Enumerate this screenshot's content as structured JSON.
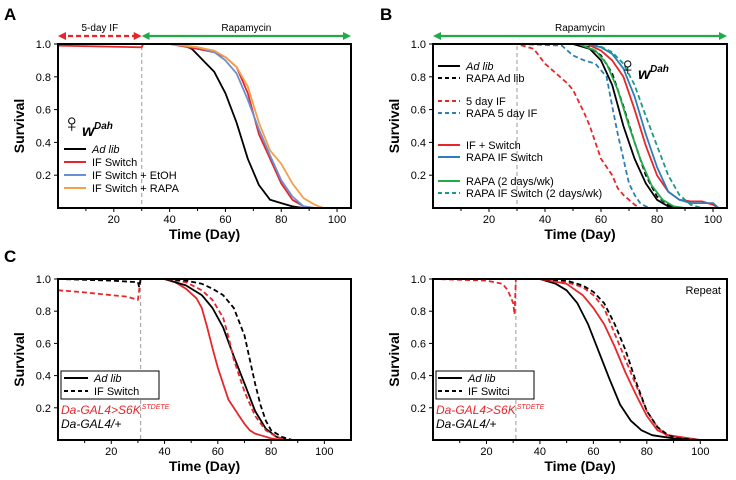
{
  "colors": {
    "black": "#000000",
    "red": "#e8262a",
    "blue": "#6a8fd3",
    "orange": "#f2a04a",
    "steel": "#2c7fb8",
    "green": "#21a94a",
    "teal": "#1a9a8a",
    "gray": "#aaaaaa",
    "arrow_red": "#e8262a",
    "arrow_green": "#21a94a"
  },
  "chart_data": [
    {
      "panel": "A",
      "type": "line",
      "xlabel": "Time (Day)",
      "ylabel": "Survival",
      "xlim": [
        0,
        105
      ],
      "ylim": [
        0,
        1
      ],
      "xticks": [
        20,
        40,
        60,
        80,
        100
      ],
      "yticks": [
        0.2,
        0.4,
        0.6,
        0.8,
        1.0
      ],
      "vline_x": 30,
      "top_arrows": [
        {
          "label": "5-day IF",
          "from": 0,
          "to": 30,
          "color": "arrow_red",
          "style": "dashed"
        },
        {
          "label": "Rapamycin",
          "from": 30,
          "to": 105,
          "color": "arrow_green",
          "style": "solid"
        }
      ],
      "female_label": {
        "symbol": "♀",
        "prefix": "w",
        "superscript": "Dah"
      },
      "legend": [
        {
          "label": "Ad lib",
          "color": "black",
          "dash": false,
          "italic": true
        },
        {
          "label": "IF Switch",
          "color": "red",
          "dash": false,
          "italic": false
        },
        {
          "label": "IF Switch + EtOH",
          "color": "blue",
          "dash": false,
          "italic": false
        },
        {
          "label": "IF Switch + RAPA",
          "color": "orange",
          "dash": false,
          "italic": false
        }
      ],
      "series": [
        {
          "name": "Ad lib",
          "color": "black",
          "dash": false,
          "x": [
            0,
            44,
            48,
            52,
            56,
            60,
            64,
            68,
            72,
            76,
            80,
            84,
            88,
            90
          ],
          "y": [
            1.0,
            1.0,
            0.97,
            0.9,
            0.83,
            0.7,
            0.52,
            0.3,
            0.14,
            0.05,
            0.03,
            0.01,
            0.0,
            0.0
          ]
        },
        {
          "name": "IF Switch",
          "color": "red",
          "dash": false,
          "x": [
            0,
            30,
            30.5,
            40,
            50,
            56,
            60,
            64,
            68,
            72,
            76,
            80,
            84,
            88,
            92
          ],
          "y": [
            0.99,
            0.98,
            1.0,
            1.0,
            0.97,
            0.95,
            0.92,
            0.86,
            0.7,
            0.45,
            0.3,
            0.15,
            0.05,
            0.01,
            0.0
          ]
        },
        {
          "name": "IF Switch + EtOH",
          "color": "blue",
          "dash": false,
          "x": [
            30,
            40,
            50,
            56,
            60,
            64,
            68,
            72,
            76,
            80,
            84,
            88,
            92
          ],
          "y": [
            1.0,
            1.0,
            0.98,
            0.95,
            0.9,
            0.82,
            0.66,
            0.48,
            0.32,
            0.17,
            0.07,
            0.01,
            0.0
          ]
        },
        {
          "name": "IF Switch + RAPA",
          "color": "orange",
          "dash": false,
          "x": [
            30,
            40,
            50,
            56,
            60,
            64,
            68,
            72,
            76,
            80,
            84,
            88,
            92,
            95
          ],
          "y": [
            1.0,
            1.0,
            0.98,
            0.96,
            0.92,
            0.86,
            0.74,
            0.52,
            0.35,
            0.27,
            0.15,
            0.06,
            0.02,
            0.0
          ]
        }
      ]
    },
    {
      "panel": "B",
      "type": "line",
      "xlabel": "Time (Day)",
      "ylabel": "Survival",
      "xlim": [
        0,
        105
      ],
      "ylim": [
        0,
        1
      ],
      "xticks": [
        20,
        40,
        60,
        80,
        100
      ],
      "yticks": [
        0.2,
        0.4,
        0.6,
        0.8,
        1.0
      ],
      "vline_x": 30,
      "top_arrows": [
        {
          "label": "Rapamycin",
          "from": 0,
          "to": 105,
          "color": "arrow_green",
          "style": "solid"
        }
      ],
      "female_label": {
        "symbol": "♀",
        "prefix": "w",
        "superscript": "Dah"
      },
      "legend": [
        {
          "label": "Ad lib",
          "color": "black",
          "dash": false,
          "italic": true
        },
        {
          "label": "RAPA Ad lib",
          "color": "black",
          "dash": true,
          "italic": false,
          "italic_suffix": "Ad lib"
        },
        {
          "label": "5 day IF",
          "color": "red",
          "dash": true,
          "italic": false
        },
        {
          "label": "RAPA 5 day IF",
          "color": "steel",
          "dash": true,
          "italic": false
        },
        {
          "label": "IF + Switch",
          "color": "red",
          "dash": false,
          "italic": false
        },
        {
          "label": "RAPA IF Switch",
          "color": "steel",
          "dash": false,
          "italic": false
        },
        {
          "label": "RAPA (2 days/wk)",
          "color": "green",
          "dash": false,
          "italic": false
        },
        {
          "label": "RAPA IF Switch (2 days/wk)",
          "color": "teal",
          "dash": true,
          "italic": false
        }
      ],
      "series": [
        {
          "name": "5 day IF",
          "color": "red",
          "dash": true,
          "x": [
            0,
            30,
            36,
            40,
            44,
            48,
            50,
            52,
            54,
            56,
            58,
            60,
            62,
            64,
            66,
            68,
            70,
            72,
            74
          ],
          "y": [
            1.0,
            1.0,
            0.97,
            0.88,
            0.82,
            0.76,
            0.72,
            0.65,
            0.58,
            0.5,
            0.4,
            0.3,
            0.25,
            0.2,
            0.12,
            0.08,
            0.05,
            0.02,
            0.0
          ]
        },
        {
          "name": "RAPA 5 day IF",
          "color": "steel",
          "dash": true,
          "x": [
            0,
            30,
            46,
            50,
            54,
            58,
            62,
            64,
            66,
            68,
            70,
            72,
            74,
            76,
            78
          ],
          "y": [
            1.0,
            1.0,
            0.99,
            0.93,
            0.9,
            0.88,
            0.8,
            0.62,
            0.45,
            0.3,
            0.15,
            0.08,
            0.03,
            0.01,
            0.0
          ]
        },
        {
          "name": "Ad lib",
          "color": "black",
          "dash": false,
          "x": [
            0,
            50,
            56,
            60,
            64,
            68,
            72,
            76,
            80,
            84,
            88
          ],
          "y": [
            1.0,
            1.0,
            0.97,
            0.9,
            0.75,
            0.5,
            0.3,
            0.15,
            0.05,
            0.01,
            0.0
          ]
        },
        {
          "name": "RAPA Ad lib",
          "color": "black",
          "dash": true,
          "x": [
            0,
            50,
            56,
            60,
            64,
            68,
            72,
            76,
            80,
            84,
            88
          ],
          "y": [
            1.0,
            1.0,
            0.98,
            0.93,
            0.82,
            0.62,
            0.4,
            0.2,
            0.07,
            0.02,
            0.0
          ]
        },
        {
          "name": "RAPA (2 days/wk)",
          "color": "green",
          "dash": false,
          "x": [
            0,
            52,
            58,
            62,
            66,
            70,
            74,
            78,
            82,
            86,
            90
          ],
          "y": [
            1.0,
            1.0,
            0.96,
            0.88,
            0.72,
            0.5,
            0.3,
            0.14,
            0.05,
            0.01,
            0.0
          ]
        },
        {
          "name": "IF + Switch",
          "color": "red",
          "dash": false,
          "x": [
            0,
            55,
            60,
            64,
            68,
            72,
            76,
            80,
            84,
            88,
            92,
            96,
            100,
            102
          ],
          "y": [
            1.0,
            1.0,
            0.96,
            0.9,
            0.8,
            0.6,
            0.38,
            0.2,
            0.1,
            0.05,
            0.04,
            0.04,
            0.02,
            0.0
          ]
        },
        {
          "name": "RAPA IF Switch",
          "color": "steel",
          "dash": false,
          "x": [
            0,
            55,
            60,
            64,
            68,
            72,
            76,
            80,
            84,
            88,
            92,
            96,
            100,
            102
          ],
          "y": [
            1.0,
            1.0,
            0.98,
            0.94,
            0.85,
            0.68,
            0.45,
            0.25,
            0.1,
            0.05,
            0.03,
            0.03,
            0.03,
            0.0
          ]
        },
        {
          "name": "RAPA IF Switch (2 days/wk)",
          "color": "teal",
          "dash": true,
          "x": [
            0,
            58,
            64,
            68,
            72,
            76,
            80,
            84,
            88,
            92,
            96
          ],
          "y": [
            1.0,
            1.0,
            0.95,
            0.88,
            0.75,
            0.56,
            0.38,
            0.2,
            0.08,
            0.02,
            0.0
          ]
        }
      ]
    },
    {
      "panel": "C",
      "type": "line",
      "xlabel": "Time (Day)",
      "ylabel": "Survival",
      "xlim": [
        0,
        110
      ],
      "ylim": [
        0,
        1
      ],
      "xticks": [
        20,
        40,
        60,
        80,
        100
      ],
      "yticks": [
        0.2,
        0.4,
        0.6,
        0.8,
        1.0
      ],
      "vline_x": 31,
      "legend": [
        {
          "label": "Ad lib",
          "color": "black",
          "dash": false,
          "italic": true
        },
        {
          "label": "IF Switch",
          "color": "black",
          "dash": true,
          "italic": false
        }
      ],
      "genotypes": [
        {
          "label": "Da-GAL4>S6K",
          "superscript": "STDETE",
          "color": "red"
        },
        {
          "label": "Da-GAL4/+",
          "superscript": "",
          "color": "black"
        }
      ],
      "series": [
        {
          "name": "S6K Ad lib",
          "color": "red",
          "dash": false,
          "x": [
            0,
            40,
            44,
            48,
            52,
            54,
            56,
            58,
            60,
            62,
            64,
            66,
            68,
            70,
            72,
            74,
            76,
            78,
            80,
            84
          ],
          "y": [
            1.0,
            1.0,
            0.98,
            0.94,
            0.88,
            0.82,
            0.7,
            0.57,
            0.45,
            0.35,
            0.25,
            0.2,
            0.15,
            0.1,
            0.06,
            0.04,
            0.03,
            0.02,
            0.01,
            0.0
          ]
        },
        {
          "name": "Control Ad lib",
          "color": "black",
          "dash": false,
          "x": [
            0,
            40,
            48,
            54,
            58,
            62,
            66,
            70,
            74,
            78,
            82,
            86
          ],
          "y": [
            1.0,
            1.0,
            0.96,
            0.9,
            0.82,
            0.7,
            0.52,
            0.35,
            0.18,
            0.07,
            0.02,
            0.0
          ]
        },
        {
          "name": "S6K IF Switch",
          "color": "red",
          "dash": true,
          "x": [
            0,
            8,
            14,
            20,
            26,
            30,
            31,
            40,
            48,
            54,
            58,
            62,
            64,
            66,
            70,
            74,
            78,
            82,
            86
          ],
          "y": [
            0.93,
            0.92,
            0.91,
            0.9,
            0.89,
            0.87,
            1.0,
            1.0,
            0.98,
            0.93,
            0.87,
            0.76,
            0.64,
            0.5,
            0.3,
            0.15,
            0.06,
            0.02,
            0.0
          ]
        },
        {
          "name": "Control IF Switch",
          "color": "black",
          "dash": true,
          "x": [
            0,
            20,
            30,
            30.5,
            31,
            40,
            48,
            54,
            58,
            62,
            66,
            70,
            72,
            74,
            76,
            78,
            80,
            84,
            88
          ],
          "y": [
            1.0,
            0.99,
            0.98,
            0.95,
            1.0,
            1.0,
            0.99,
            0.97,
            0.94,
            0.9,
            0.82,
            0.65,
            0.5,
            0.35,
            0.22,
            0.12,
            0.06,
            0.02,
            0.0
          ]
        }
      ]
    },
    {
      "panel": "C-repeat",
      "type": "line",
      "xlabel": "Time (Day)",
      "ylabel": "Survival",
      "xlim": [
        0,
        110
      ],
      "ylim": [
        0,
        1
      ],
      "xticks": [
        20,
        40,
        60,
        80,
        100
      ],
      "yticks": [
        0.2,
        0.4,
        0.6,
        0.8,
        1.0
      ],
      "vline_x": 31,
      "annotation": "Repeat",
      "legend": [
        {
          "label": "Ad lib",
          "color": "black",
          "dash": false,
          "italic": true
        },
        {
          "label": "IF Switci",
          "color": "black",
          "dash": true,
          "italic": false
        }
      ],
      "genotypes": [
        {
          "label": "Da-GAL4>S6K",
          "superscript": "STDETE",
          "color": "red"
        },
        {
          "label": "Da-GAL4/+",
          "superscript": "",
          "color": "black"
        }
      ],
      "series": [
        {
          "name": "S6K IF Switch",
          "color": "red",
          "dash": true,
          "x": [
            0,
            20,
            26,
            28,
            30,
            30.5,
            31,
            40,
            50,
            56,
            60,
            64,
            68,
            72,
            76,
            80,
            84,
            88,
            92
          ],
          "y": [
            1.0,
            0.99,
            0.97,
            0.93,
            0.85,
            0.78,
            1.0,
            1.0,
            0.98,
            0.95,
            0.9,
            0.82,
            0.66,
            0.5,
            0.34,
            0.18,
            0.08,
            0.02,
            0.0
          ]
        },
        {
          "name": "Control Ad lib",
          "color": "black",
          "dash": false,
          "x": [
            0,
            40,
            46,
            50,
            54,
            58,
            62,
            66,
            70,
            74,
            78,
            82,
            86,
            90,
            95,
            100
          ],
          "y": [
            1.0,
            1.0,
            0.97,
            0.93,
            0.85,
            0.72,
            0.55,
            0.38,
            0.22,
            0.12,
            0.06,
            0.03,
            0.02,
            0.01,
            0.005,
            0.0
          ]
        },
        {
          "name": "S6K Ad lib",
          "color": "red",
          "dash": false,
          "x": [
            0,
            40,
            50,
            56,
            60,
            64,
            68,
            72,
            76,
            80,
            84,
            88,
            92,
            96,
            100
          ],
          "y": [
            1.0,
            1.0,
            0.97,
            0.9,
            0.82,
            0.72,
            0.58,
            0.42,
            0.28,
            0.15,
            0.06,
            0.03,
            0.02,
            0.01,
            0.0
          ]
        },
        {
          "name": "Control IF Switch",
          "color": "black",
          "dash": true,
          "x": [
            0,
            40,
            50,
            56,
            60,
            64,
            68,
            72,
            76,
            80,
            84,
            88,
            92,
            96,
            100
          ],
          "y": [
            1.0,
            1.0,
            0.99,
            0.96,
            0.92,
            0.85,
            0.72,
            0.56,
            0.36,
            0.18,
            0.08,
            0.03,
            0.01,
            0.005,
            0.0
          ]
        }
      ]
    }
  ]
}
